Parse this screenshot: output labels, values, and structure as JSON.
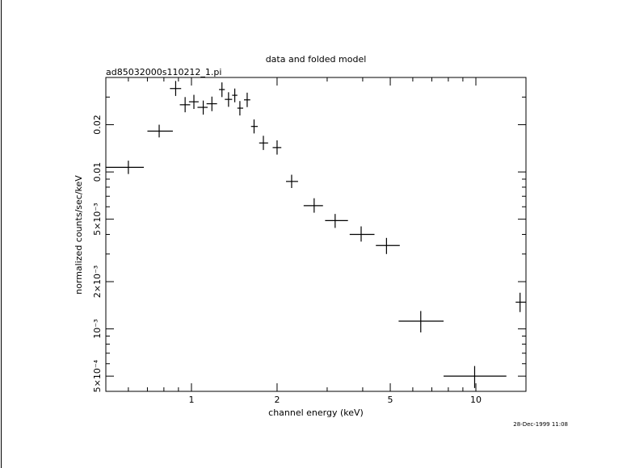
{
  "chart_data": {
    "type": "scatter",
    "title": "data and folded model",
    "subtitle": "ad85032000s110212_1.pi",
    "xlabel": "channel energy (keV)",
    "ylabel": "normalized counts/sec/keV",
    "timestamp": "28-Dec-1999 11:08",
    "xscale": "log",
    "yscale": "log",
    "xlim": [
      0.5,
      15
    ],
    "ylim": [
      0.0004,
      0.04
    ],
    "x_major_ticks": [
      {
        "v": 1,
        "label": "1"
      },
      {
        "v": 2,
        "label": "2"
      },
      {
        "v": 5,
        "label": "5"
      },
      {
        "v": 10,
        "label": "10"
      }
    ],
    "y_major_ticks": [
      {
        "v": 0.0005,
        "label": "5×10⁻⁴"
      },
      {
        "v": 0.001,
        "label": "10⁻³"
      },
      {
        "v": 0.002,
        "label": "2×10⁻³"
      },
      {
        "v": 0.005,
        "label": "5×10⁻³"
      },
      {
        "v": 0.01,
        "label": "0.01"
      },
      {
        "v": 0.02,
        "label": "0.02"
      }
    ],
    "series": [
      {
        "points": [
          {
            "x": 0.6,
            "xlo": 0.5,
            "xhi": 0.68,
            "y": 0.0107,
            "ylo": 0.0097,
            "yhi": 0.0118
          },
          {
            "x": 0.77,
            "xlo": 0.7,
            "xhi": 0.86,
            "y": 0.0182,
            "ylo": 0.0166,
            "yhi": 0.02
          },
          {
            "x": 0.88,
            "xlo": 0.84,
            "xhi": 0.92,
            "y": 0.034,
            "ylo": 0.0305,
            "yhi": 0.038
          },
          {
            "x": 0.95,
            "xlo": 0.91,
            "xhi": 0.99,
            "y": 0.0268,
            "ylo": 0.024,
            "yhi": 0.03
          },
          {
            "x": 1.02,
            "xlo": 0.98,
            "xhi": 1.06,
            "y": 0.028,
            "ylo": 0.0252,
            "yhi": 0.031
          },
          {
            "x": 1.1,
            "xlo": 1.05,
            "xhi": 1.14,
            "y": 0.0258,
            "ylo": 0.0232,
            "yhi": 0.0285
          },
          {
            "x": 1.18,
            "xlo": 1.13,
            "xhi": 1.23,
            "y": 0.0272,
            "ylo": 0.0244,
            "yhi": 0.0302
          },
          {
            "x": 1.28,
            "xlo": 1.25,
            "xhi": 1.31,
            "y": 0.0335,
            "ylo": 0.03,
            "yhi": 0.0372
          },
          {
            "x": 1.35,
            "xlo": 1.31,
            "xhi": 1.39,
            "y": 0.029,
            "ylo": 0.026,
            "yhi": 0.0322
          },
          {
            "x": 1.42,
            "xlo": 1.39,
            "xhi": 1.45,
            "y": 0.0308,
            "ylo": 0.0278,
            "yhi": 0.034
          },
          {
            "x": 1.48,
            "xlo": 1.45,
            "xhi": 1.52,
            "y": 0.0255,
            "ylo": 0.0229,
            "yhi": 0.0283
          },
          {
            "x": 1.57,
            "xlo": 1.53,
            "xhi": 1.61,
            "y": 0.0288,
            "ylo": 0.0259,
            "yhi": 0.032
          },
          {
            "x": 1.66,
            "xlo": 1.62,
            "xhi": 1.71,
            "y": 0.0195,
            "ylo": 0.0176,
            "yhi": 0.0216
          },
          {
            "x": 1.79,
            "xlo": 1.73,
            "xhi": 1.86,
            "y": 0.0153,
            "ylo": 0.0138,
            "yhi": 0.017
          },
          {
            "x": 2.0,
            "xlo": 1.93,
            "xhi": 2.07,
            "y": 0.0143,
            "ylo": 0.0129,
            "yhi": 0.0159
          },
          {
            "x": 2.25,
            "xlo": 2.15,
            "xhi": 2.37,
            "y": 0.0087,
            "ylo": 0.0079,
            "yhi": 0.0096
          },
          {
            "x": 2.7,
            "xlo": 2.48,
            "xhi": 2.9,
            "y": 0.0061,
            "ylo": 0.0055,
            "yhi": 0.0068
          },
          {
            "x": 3.2,
            "xlo": 2.95,
            "xhi": 3.55,
            "y": 0.0049,
            "ylo": 0.0044,
            "yhi": 0.0054
          },
          {
            "x": 3.95,
            "xlo": 3.6,
            "xhi": 4.4,
            "y": 0.004,
            "ylo": 0.0036,
            "yhi": 0.0045
          },
          {
            "x": 4.85,
            "xlo": 4.45,
            "xhi": 5.4,
            "y": 0.0034,
            "ylo": 0.003,
            "yhi": 0.0038
          },
          {
            "x": 6.4,
            "xlo": 5.35,
            "xhi": 7.7,
            "y": 0.00112,
            "ylo": 0.00095,
            "yhi": 0.0013
          },
          {
            "x": 9.9,
            "xlo": 7.7,
            "xhi": 12.8,
            "y": 0.0005,
            "ylo": 0.00042,
            "yhi": 0.00058
          },
          {
            "x": 14.3,
            "xlo": 13.8,
            "xhi": 15.0,
            "y": 0.00148,
            "ylo": 0.00128,
            "yhi": 0.0017
          }
        ]
      }
    ]
  }
}
